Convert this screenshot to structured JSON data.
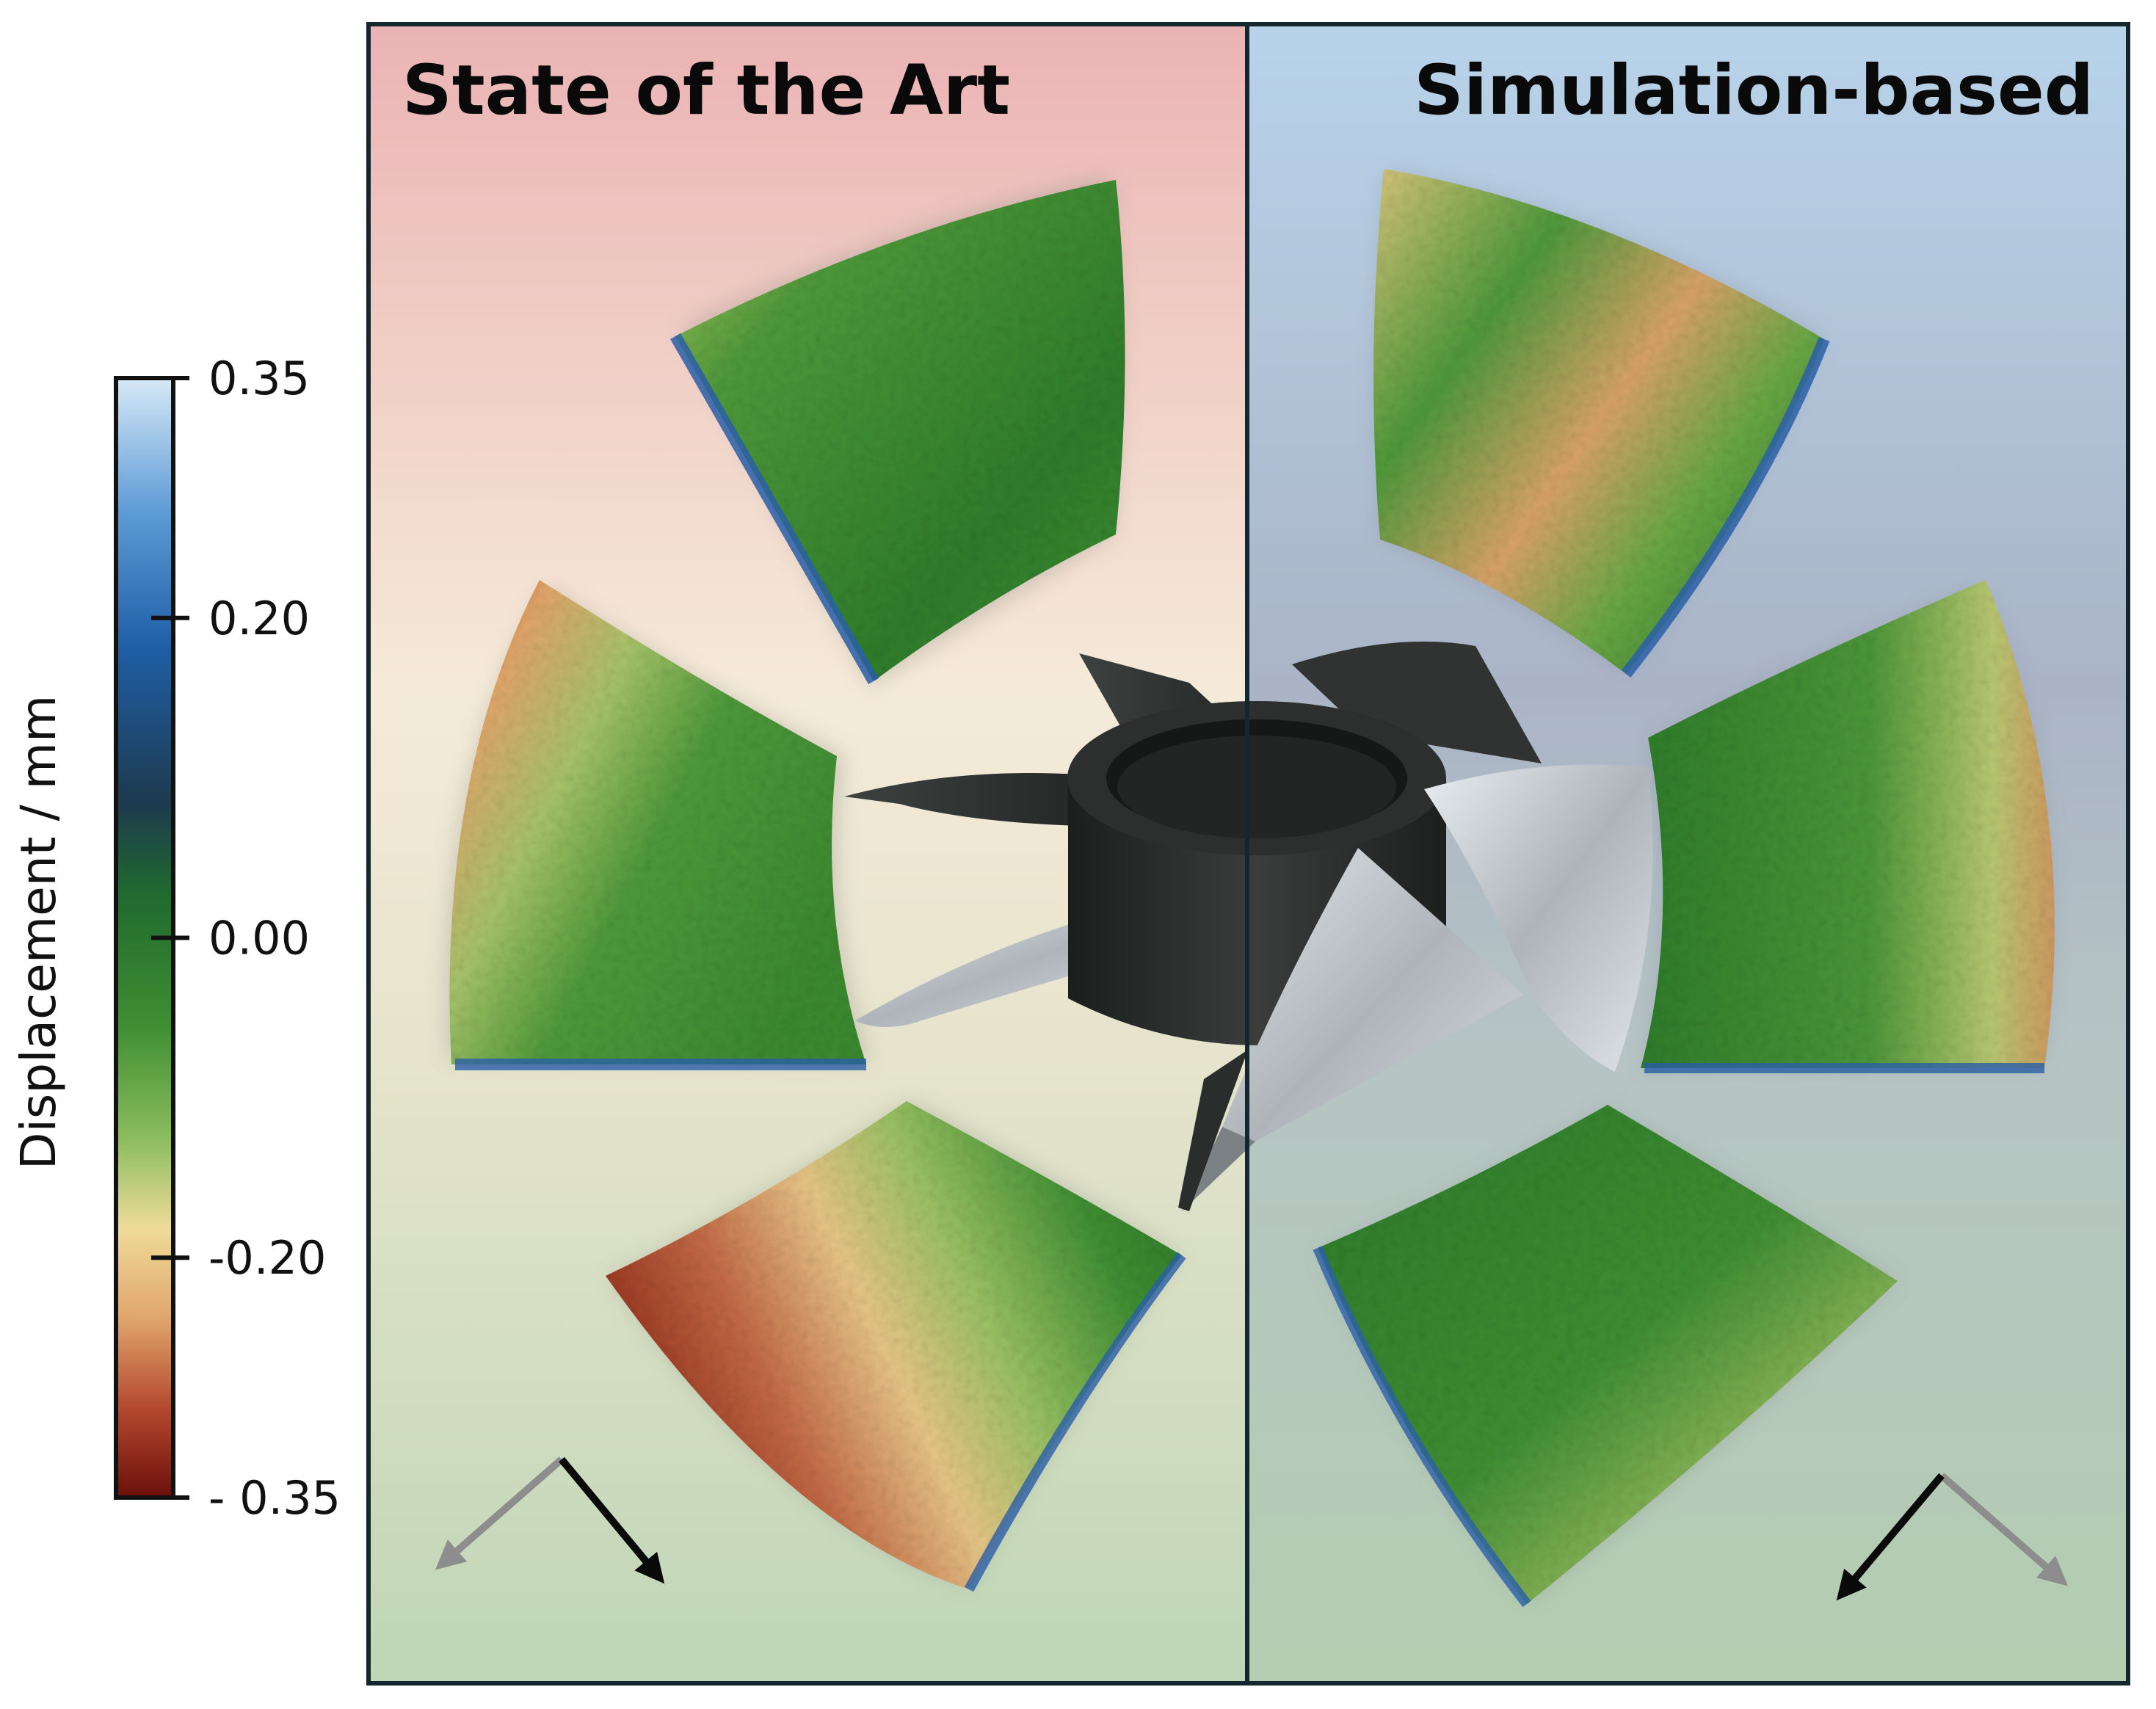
{
  "colorbar": {
    "title": "Displacement / mm",
    "ticks": [
      {
        "value": 0.35,
        "label": "0.35"
      },
      {
        "value": 0.2,
        "label": "0.20"
      },
      {
        "value": 0.0,
        "label": "0.00"
      },
      {
        "value": -0.2,
        "label": "-0.20"
      },
      {
        "value": -0.35,
        "label": "- 0.35"
      }
    ],
    "range": [
      -0.35,
      0.35
    ],
    "colors": [
      "#6b0f0a",
      "#b5492f",
      "#e0a56c",
      "#efdb9a",
      "#8cbd5e",
      "#3f8f32",
      "#1f5c2a",
      "#123a5c",
      "#1f5fa6",
      "#5d9bd6",
      "#cfe3f3"
    ]
  },
  "panels": {
    "left": {
      "title": "State of the Art",
      "bg_top": "#ebb3b4",
      "bg_mid": "#f5ead9",
      "bg_bottom": "#bfd6b6"
    },
    "right": {
      "title": "Simulation-based",
      "bg_top": "#b8d3ea",
      "bg_mid": "#aab6c8",
      "bg_bottom": "#b4cdb0"
    }
  },
  "icons": {
    "left_axes": "orientation-axes-icon",
    "right_axes": "orientation-axes-icon",
    "impeller": "impeller-model-icon"
  }
}
